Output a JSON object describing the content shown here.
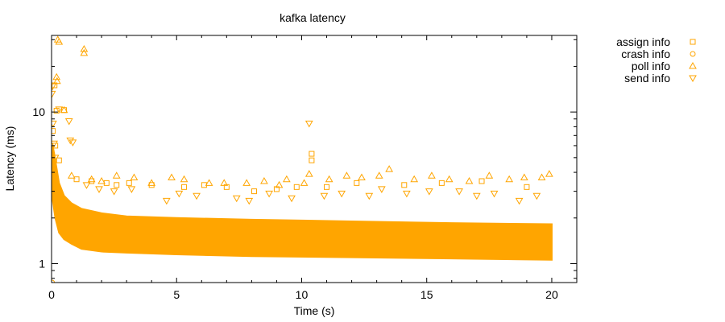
{
  "chart_data": {
    "type": "scatter",
    "title": "kafka latency",
    "xlabel": "Time (s)",
    "ylabel": "Latency (ms)",
    "xlim": [
      0,
      21
    ],
    "ylim": [
      0.75,
      32
    ],
    "yscale": "log",
    "grid": false,
    "legend_position": "top-right, outside plot",
    "x_ticks": [
      {
        "value": 0,
        "label": "0"
      },
      {
        "value": 5,
        "label": "5"
      },
      {
        "value": 10,
        "label": "10"
      },
      {
        "value": 15,
        "label": "15"
      },
      {
        "value": 20,
        "label": "20"
      }
    ],
    "y_ticks": [
      {
        "value": 1,
        "label": "1"
      },
      {
        "value": 10,
        "label": "10"
      }
    ],
    "marker_color": "#ffa500",
    "series": [
      {
        "name": "assign info",
        "marker": "square",
        "points": [
          [
            0.02,
            5.2
          ],
          [
            0.05,
            7.5
          ],
          [
            0.08,
            4.1
          ],
          [
            0.12,
            15.0
          ],
          [
            0.15,
            6.0
          ],
          [
            0.2,
            10.2
          ],
          [
            0.3,
            4.8
          ],
          [
            0.5,
            10.3
          ],
          [
            1.0,
            3.6
          ],
          [
            1.6,
            3.5
          ],
          [
            2.2,
            3.4
          ],
          [
            2.6,
            3.3
          ],
          [
            3.1,
            3.4
          ],
          [
            4.0,
            3.3
          ],
          [
            5.3,
            3.2
          ],
          [
            6.1,
            3.3
          ],
          [
            7.0,
            3.2
          ],
          [
            8.1,
            3.0
          ],
          [
            9.0,
            3.1
          ],
          [
            9.8,
            3.2
          ],
          [
            10.4,
            5.3
          ],
          [
            10.4,
            4.8
          ],
          [
            11.0,
            3.2
          ],
          [
            12.2,
            3.4
          ],
          [
            14.1,
            3.3
          ],
          [
            15.6,
            3.4
          ],
          [
            17.2,
            3.5
          ],
          [
            19.0,
            3.2
          ]
        ]
      },
      {
        "name": "crash info",
        "marker": "circle",
        "points": [
          [
            0.02,
            0.75
          ]
        ]
      },
      {
        "name": "poll info",
        "marker": "triangle-up",
        "points": [
          [
            0.25,
            30.0
          ],
          [
            0.3,
            29.0
          ],
          [
            0.2,
            17.0
          ],
          [
            0.22,
            16.0
          ],
          [
            0.5,
            10.3
          ],
          [
            1.3,
            24.5
          ],
          [
            1.3,
            26.0
          ],
          [
            0.8,
            3.8
          ],
          [
            1.6,
            3.6
          ],
          [
            2.0,
            3.5
          ],
          [
            2.6,
            3.8
          ],
          [
            3.3,
            3.7
          ],
          [
            4.0,
            3.4
          ],
          [
            4.8,
            3.7
          ],
          [
            5.3,
            3.6
          ],
          [
            6.3,
            3.4
          ],
          [
            6.9,
            3.4
          ],
          [
            7.8,
            3.4
          ],
          [
            8.5,
            3.5
          ],
          [
            9.1,
            3.3
          ],
          [
            9.4,
            3.6
          ],
          [
            10.1,
            3.4
          ],
          [
            10.3,
            3.9
          ],
          [
            11.1,
            3.6
          ],
          [
            11.8,
            3.8
          ],
          [
            12.4,
            3.7
          ],
          [
            13.1,
            3.8
          ],
          [
            13.5,
            4.2
          ],
          [
            14.5,
            3.6
          ],
          [
            15.2,
            3.8
          ],
          [
            15.9,
            3.6
          ],
          [
            16.7,
            3.5
          ],
          [
            17.5,
            3.8
          ],
          [
            18.3,
            3.6
          ],
          [
            18.9,
            3.7
          ],
          [
            19.6,
            3.7
          ],
          [
            19.9,
            3.9
          ]
        ]
      },
      {
        "name": "send info",
        "marker": "triangle-down",
        "points": [
          [
            0.02,
            13.2
          ],
          [
            0.04,
            14.8
          ],
          [
            0.06,
            8.4
          ],
          [
            0.1,
            6.2
          ],
          [
            0.15,
            5.0
          ],
          [
            0.3,
            10.4
          ],
          [
            0.7,
            8.7
          ],
          [
            0.75,
            6.5
          ],
          [
            0.85,
            6.3
          ],
          [
            1.4,
            3.3
          ],
          [
            1.9,
            3.1
          ],
          [
            2.5,
            3.0
          ],
          [
            3.2,
            3.1
          ],
          [
            4.6,
            2.6
          ],
          [
            5.1,
            2.9
          ],
          [
            5.8,
            2.8
          ],
          [
            7.4,
            2.7
          ],
          [
            7.9,
            2.6
          ],
          [
            8.7,
            2.9
          ],
          [
            9.6,
            2.7
          ],
          [
            10.3,
            8.4
          ],
          [
            10.9,
            2.8
          ],
          [
            11.6,
            2.9
          ],
          [
            12.7,
            2.8
          ],
          [
            13.2,
            3.1
          ],
          [
            14.2,
            2.9
          ],
          [
            15.1,
            3.0
          ],
          [
            16.3,
            3.0
          ],
          [
            17.0,
            2.8
          ],
          [
            17.7,
            2.9
          ],
          [
            18.7,
            2.6
          ],
          [
            19.4,
            2.8
          ]
        ]
      },
      {
        "name": "",
        "marker": "dense-band",
        "note_series": "send info",
        "bands": [
          {
            "t": 0.05,
            "low": 2.6,
            "high": 6.0
          },
          {
            "t": 0.15,
            "low": 2.0,
            "high": 4.8
          },
          {
            "t": 0.3,
            "low": 1.6,
            "high": 3.4
          },
          {
            "t": 0.5,
            "low": 1.45,
            "high": 2.8
          },
          {
            "t": 0.8,
            "low": 1.35,
            "high": 2.5
          },
          {
            "t": 1.2,
            "low": 1.25,
            "high": 2.3
          },
          {
            "t": 2.0,
            "low": 1.2,
            "high": 2.15
          },
          {
            "t": 3.0,
            "low": 1.18,
            "high": 2.05
          },
          {
            "t": 5.0,
            "low": 1.15,
            "high": 2.0
          },
          {
            "t": 8.0,
            "low": 1.12,
            "high": 1.95
          },
          {
            "t": 12.0,
            "low": 1.1,
            "high": 1.9
          },
          {
            "t": 16.0,
            "low": 1.08,
            "high": 1.85
          },
          {
            "t": 20.0,
            "low": 1.06,
            "high": 1.82
          }
        ]
      }
    ]
  }
}
